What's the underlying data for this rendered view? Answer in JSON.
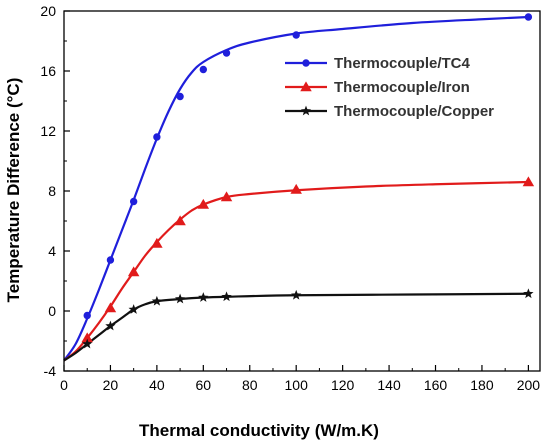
{
  "chart_data": {
    "type": "line",
    "title": "",
    "xlabel": "Thermal conductivity (W/m.K)",
    "ylabel": "Temperature Difference (°C)",
    "xlim": [
      0,
      205
    ],
    "ylim": [
      -4,
      20
    ],
    "xticks": [
      0,
      20,
      40,
      60,
      80,
      100,
      120,
      140,
      160,
      180,
      200
    ],
    "yticks": [
      -4,
      0,
      4,
      8,
      12,
      16,
      20
    ],
    "legend_position": "top-right",
    "grid": false,
    "series": [
      {
        "name": "Thermocouple/TC4",
        "color": "#1f1fdb",
        "marker": "circle",
        "x": [
          10,
          20,
          30,
          40,
          50,
          60,
          70,
          100,
          200
        ],
        "y": [
          -0.3,
          3.4,
          7.3,
          11.6,
          14.3,
          16.1,
          17.2,
          18.4,
          19.6
        ],
        "curve": [
          [
            0,
            -3.3
          ],
          [
            5,
            -2.2
          ],
          [
            10,
            -0.5
          ],
          [
            15,
            1.4
          ],
          [
            20,
            3.4
          ],
          [
            25,
            5.4
          ],
          [
            30,
            7.4
          ],
          [
            35,
            9.5
          ],
          [
            40,
            11.5
          ],
          [
            45,
            13.3
          ],
          [
            50,
            14.8
          ],
          [
            55,
            15.9
          ],
          [
            60,
            16.6
          ],
          [
            70,
            17.4
          ],
          [
            80,
            17.9
          ],
          [
            100,
            18.5
          ],
          [
            120,
            18.8
          ],
          [
            150,
            19.2
          ],
          [
            180,
            19.45
          ],
          [
            200,
            19.6
          ]
        ]
      },
      {
        "name": "Thermocouple/Iron",
        "color": "#e11b1b",
        "marker": "triangle",
        "x": [
          10,
          20,
          30,
          40,
          50,
          60,
          70,
          100,
          200
        ],
        "y": [
          -1.8,
          0.2,
          2.6,
          4.5,
          6.0,
          7.1,
          7.6,
          8.1,
          8.6
        ],
        "curve": [
          [
            0,
            -3.3
          ],
          [
            5,
            -2.7
          ],
          [
            10,
            -1.8
          ],
          [
            15,
            -0.8
          ],
          [
            20,
            0.3
          ],
          [
            25,
            1.5
          ],
          [
            30,
            2.6
          ],
          [
            35,
            3.7
          ],
          [
            40,
            4.6
          ],
          [
            45,
            5.4
          ],
          [
            50,
            6.1
          ],
          [
            55,
            6.7
          ],
          [
            60,
            7.1
          ],
          [
            70,
            7.6
          ],
          [
            80,
            7.8
          ],
          [
            100,
            8.05
          ],
          [
            130,
            8.3
          ],
          [
            160,
            8.45
          ],
          [
            200,
            8.6
          ]
        ]
      },
      {
        "name": "Thermocouple/Copper",
        "color": "#111111",
        "marker": "star",
        "x": [
          10,
          20,
          30,
          40,
          50,
          60,
          70,
          100,
          200
        ],
        "y": [
          -2.2,
          -1.0,
          0.1,
          0.65,
          0.8,
          0.9,
          0.95,
          1.05,
          1.15
        ],
        "curve": [
          [
            0,
            -3.3
          ],
          [
            5,
            -2.8
          ],
          [
            10,
            -2.2
          ],
          [
            15,
            -1.6
          ],
          [
            20,
            -1.0
          ],
          [
            25,
            -0.45
          ],
          [
            30,
            0.1
          ],
          [
            35,
            0.45
          ],
          [
            40,
            0.65
          ],
          [
            50,
            0.8
          ],
          [
            60,
            0.9
          ],
          [
            70,
            0.95
          ],
          [
            100,
            1.05
          ],
          [
            150,
            1.1
          ],
          [
            200,
            1.15
          ]
        ]
      }
    ]
  }
}
